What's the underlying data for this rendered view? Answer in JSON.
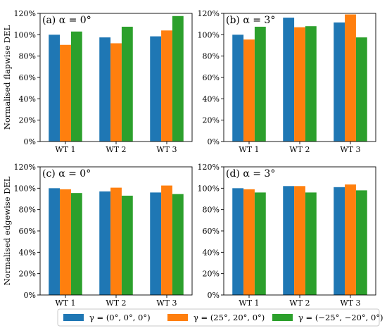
{
  "chart_data": {
    "type": "bar",
    "categories": [
      "WT 1",
      "WT 2",
      "WT 3"
    ],
    "ylim": [
      0,
      120
    ],
    "y_ticks": [
      "0%",
      "20%",
      "40%",
      "60%",
      "80%",
      "100%",
      "120%"
    ],
    "legend": {
      "placement": "bottom",
      "entries": [
        {
          "label": "γ = (0°, 0°, 0°)",
          "color": "#1f77b4"
        },
        {
          "label": "γ = (25°, 20°, 0°)",
          "color": "#ff7f0e"
        },
        {
          "label": "γ = (−25°, −20°, 0°)",
          "color": "#2ca02c"
        }
      ]
    },
    "ylabels": {
      "top_row": "Normalised flapwise DEL",
      "bottom_row": "Normalised edgewise DEL"
    },
    "panels": [
      {
        "title": "(a) α = 0°",
        "series": [
          {
            "values": [
              100,
              97.5,
              98.5
            ]
          },
          {
            "values": [
              90.5,
              92,
              104
            ]
          },
          {
            "values": [
              103,
              107.5,
              117.5
            ]
          }
        ]
      },
      {
        "title": "(b) α = 3°",
        "series": [
          {
            "values": [
              100,
              116,
              111.5
            ]
          },
          {
            "values": [
              95.5,
              107,
              119
            ]
          },
          {
            "values": [
              107.5,
              108,
              97.5
            ]
          }
        ]
      },
      {
        "title": "(c) α = 0°",
        "series": [
          {
            "values": [
              100,
              97,
              96
            ]
          },
          {
            "values": [
              99,
              100.5,
              102.5
            ]
          },
          {
            "values": [
              95.5,
              93,
              94.5
            ]
          }
        ]
      },
      {
        "title": "(d) α = 3°",
        "series": [
          {
            "values": [
              100,
              102,
              101
            ]
          },
          {
            "values": [
              99,
              102,
              103.5
            ]
          },
          {
            "values": [
              96,
              96,
              98
            ]
          }
        ]
      }
    ]
  }
}
